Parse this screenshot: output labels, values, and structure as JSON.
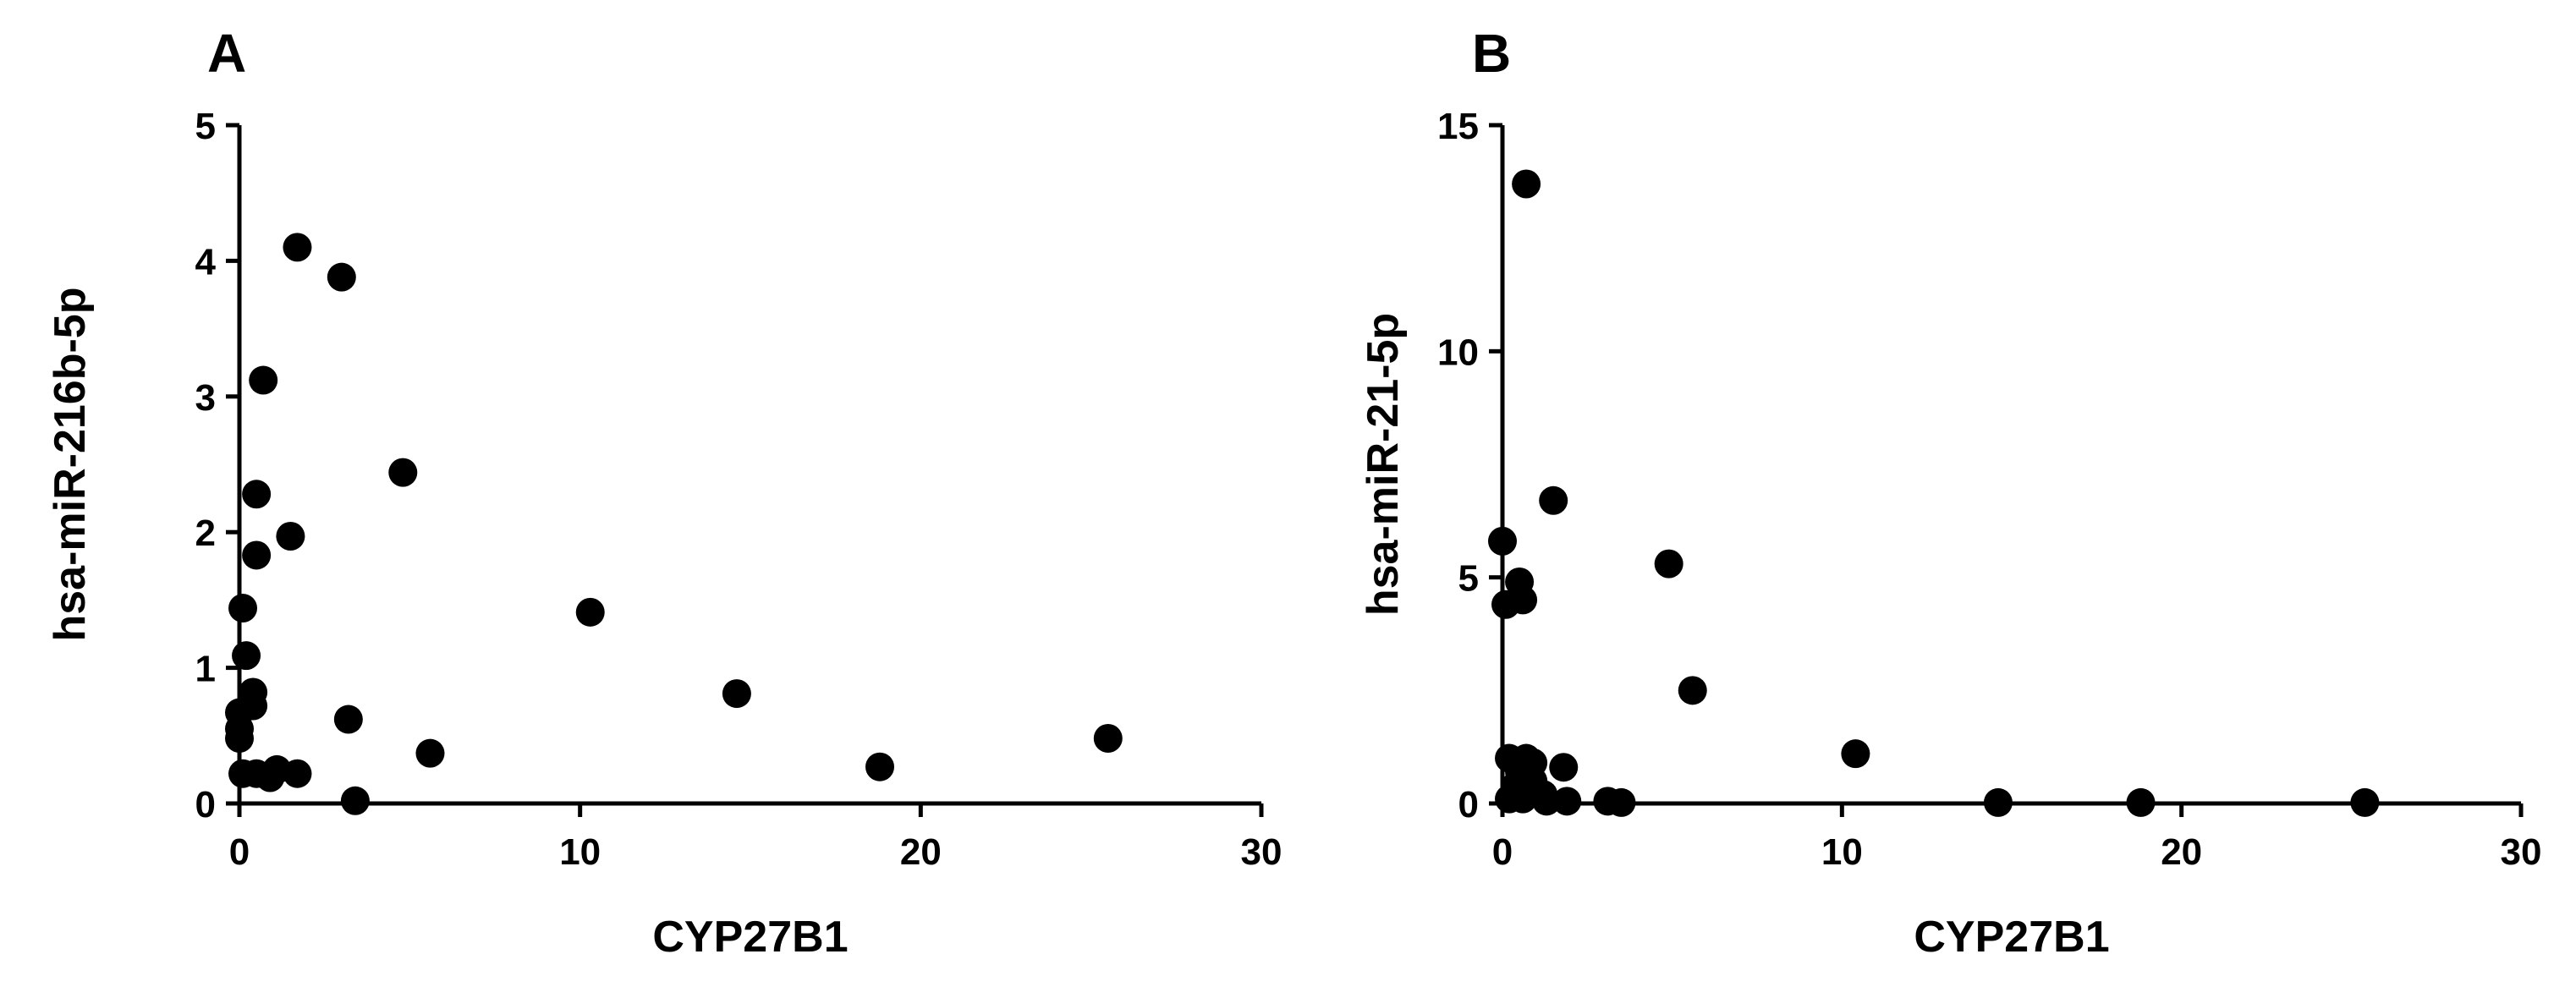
{
  "chart_data": [
    {
      "type": "scatter",
      "panel_label": "A",
      "xlabel": "CYP27B1",
      "ylabel": "hsa-miR-216b-5p",
      "xlim": [
        0,
        30
      ],
      "ylim": [
        0,
        5
      ],
      "xticks": [
        "0",
        "10",
        "20",
        "30"
      ],
      "yticks": [
        "0",
        "1",
        "2",
        "3",
        "4",
        "5"
      ],
      "grid": false,
      "points": [
        {
          "x": 1.7,
          "y": 4.1
        },
        {
          "x": 3.0,
          "y": 3.88
        },
        {
          "x": 0.7,
          "y": 3.12
        },
        {
          "x": 4.8,
          "y": 2.44
        },
        {
          "x": 0.5,
          "y": 2.28
        },
        {
          "x": 1.5,
          "y": 1.97
        },
        {
          "x": 0.5,
          "y": 1.83
        },
        {
          "x": 0.1,
          "y": 1.44
        },
        {
          "x": 10.3,
          "y": 1.41
        },
        {
          "x": 0.2,
          "y": 1.09
        },
        {
          "x": 0.4,
          "y": 0.82
        },
        {
          "x": 14.6,
          "y": 0.81
        },
        {
          "x": 0.4,
          "y": 0.72
        },
        {
          "x": 0.0,
          "y": 0.67
        },
        {
          "x": 3.2,
          "y": 0.62
        },
        {
          "x": 0.0,
          "y": 0.55
        },
        {
          "x": 0.0,
          "y": 0.48
        },
        {
          "x": 25.5,
          "y": 0.48
        },
        {
          "x": 5.6,
          "y": 0.37
        },
        {
          "x": 18.8,
          "y": 0.27
        },
        {
          "x": 1.1,
          "y": 0.25
        },
        {
          "x": 0.1,
          "y": 0.22
        },
        {
          "x": 0.5,
          "y": 0.22
        },
        {
          "x": 1.7,
          "y": 0.22
        },
        {
          "x": 0.9,
          "y": 0.19
        },
        {
          "x": 3.4,
          "y": 0.02
        }
      ]
    },
    {
      "type": "scatter",
      "panel_label": "B",
      "xlabel": "CYP27B1",
      "ylabel": "hsa-miR-21-5p",
      "xlim": [
        0,
        30
      ],
      "ylim": [
        0,
        15
      ],
      "xticks": [
        "0",
        "10",
        "20",
        "30"
      ],
      "yticks": [
        "0",
        "5",
        "10",
        "15"
      ],
      "grid": false,
      "points": [
        {
          "x": 0.7,
          "y": 13.7
        },
        {
          "x": 1.5,
          "y": 6.7
        },
        {
          "x": 0.0,
          "y": 5.8
        },
        {
          "x": 4.9,
          "y": 5.3
        },
        {
          "x": 0.5,
          "y": 4.9
        },
        {
          "x": 0.6,
          "y": 4.5
        },
        {
          "x": 0.1,
          "y": 4.4
        },
        {
          "x": 5.6,
          "y": 2.5
        },
        {
          "x": 10.4,
          "y": 1.1
        },
        {
          "x": 0.2,
          "y": 1.0
        },
        {
          "x": 0.7,
          "y": 1.0
        },
        {
          "x": 0.9,
          "y": 0.9
        },
        {
          "x": 1.8,
          "y": 0.8
        },
        {
          "x": 0.5,
          "y": 0.7
        },
        {
          "x": 0.9,
          "y": 0.5
        },
        {
          "x": 0.4,
          "y": 0.4
        },
        {
          "x": 0.9,
          "y": 0.3
        },
        {
          "x": 1.2,
          "y": 0.2
        },
        {
          "x": 0.2,
          "y": 0.1
        },
        {
          "x": 0.6,
          "y": 0.1
        },
        {
          "x": 1.3,
          "y": 0.05
        },
        {
          "x": 1.9,
          "y": 0.05
        },
        {
          "x": 3.1,
          "y": 0.05
        },
        {
          "x": 3.5,
          "y": 0.02
        },
        {
          "x": 14.6,
          "y": 0.02
        },
        {
          "x": 18.8,
          "y": 0.02
        },
        {
          "x": 25.4,
          "y": 0.02
        }
      ]
    }
  ]
}
